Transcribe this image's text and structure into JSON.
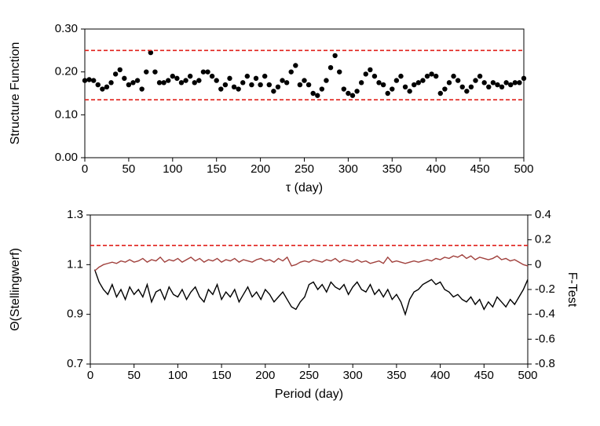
{
  "chart_data": [
    {
      "type": "scatter",
      "xlabel": "τ (day)",
      "ylabel": "Structure Function",
      "xlim": [
        0,
        500
      ],
      "xticks": [
        0,
        50,
        100,
        150,
        200,
        250,
        300,
        350,
        400,
        450,
        500
      ],
      "ylim": [
        0,
        0.3
      ],
      "yticks": [
        {
          "value": 0,
          "label": "0.00"
        },
        {
          "value": 0.1,
          "label": "0.10"
        },
        {
          "value": 0.2,
          "label": "0.20"
        },
        {
          "value": 0.3,
          "label": "0.30"
        }
      ],
      "hlines": [
        {
          "value": 0.25,
          "color": "#e0201b"
        },
        {
          "value": 0.135,
          "color": "#e0201b"
        }
      ],
      "x": [
        0,
        5,
        10,
        15,
        20,
        25,
        30,
        35,
        40,
        45,
        50,
        55,
        60,
        65,
        70,
        75,
        80,
        85,
        90,
        95,
        100,
        105,
        110,
        115,
        120,
        125,
        130,
        135,
        140,
        145,
        150,
        155,
        160,
        165,
        170,
        175,
        180,
        185,
        190,
        195,
        200,
        205,
        210,
        215,
        220,
        225,
        230,
        235,
        240,
        245,
        250,
        255,
        260,
        265,
        270,
        275,
        280,
        285,
        290,
        295,
        300,
        305,
        310,
        315,
        320,
        325,
        330,
        335,
        340,
        345,
        350,
        355,
        360,
        365,
        370,
        375,
        380,
        385,
        390,
        395,
        400,
        405,
        410,
        415,
        420,
        425,
        430,
        435,
        440,
        445,
        450,
        455,
        460,
        465,
        470,
        475,
        480,
        485,
        490,
        495,
        500
      ],
      "series": [
        {
          "color": "#000000",
          "values": [
            0.18,
            0.182,
            0.18,
            0.17,
            0.16,
            0.165,
            0.175,
            0.195,
            0.205,
            0.185,
            0.17,
            0.175,
            0.18,
            0.16,
            0.2,
            0.245,
            0.2,
            0.175,
            0.175,
            0.18,
            0.19,
            0.185,
            0.175,
            0.18,
            0.19,
            0.175,
            0.18,
            0.2,
            0.2,
            0.19,
            0.18,
            0.16,
            0.17,
            0.185,
            0.165,
            0.16,
            0.175,
            0.19,
            0.17,
            0.185,
            0.17,
            0.19,
            0.17,
            0.155,
            0.165,
            0.18,
            0.175,
            0.2,
            0.215,
            0.17,
            0.18,
            0.17,
            0.15,
            0.145,
            0.16,
            0.18,
            0.21,
            0.238,
            0.2,
            0.16,
            0.15,
            0.145,
            0.155,
            0.175,
            0.195,
            0.205,
            0.19,
            0.175,
            0.17,
            0.15,
            0.16,
            0.18,
            0.19,
            0.165,
            0.155,
            0.17,
            0.175,
            0.18,
            0.19,
            0.195,
            0.19,
            0.15,
            0.16,
            0.175,
            0.19,
            0.18,
            0.165,
            0.155,
            0.165,
            0.18,
            0.19,
            0.175,
            0.165,
            0.175,
            0.17,
            0.165,
            0.175,
            0.17,
            0.175,
            0.175,
            0.185
          ]
        }
      ]
    },
    {
      "type": "line",
      "xlabel": "Period (day)",
      "ylabel": "Θ(Stellingwerf)",
      "y2label": "F-Test",
      "xlim": [
        0,
        500
      ],
      "xticks": [
        0,
        50,
        100,
        150,
        200,
        250,
        300,
        350,
        400,
        450,
        500
      ],
      "ylim": [
        0.7,
        1.3
      ],
      "yticks": [
        0.7,
        0.9,
        1.1,
        1.3
      ],
      "y2lim": [
        -0.8,
        0.4
      ],
      "y2ticks": [
        -0.8,
        -0.6,
        -0.4,
        -0.2,
        0,
        0.2,
        0.4
      ],
      "hlines": [
        {
          "value": 0.155,
          "axis": "y2",
          "color": "#e0201b"
        }
      ],
      "x": [
        5,
        10,
        15,
        20,
        25,
        30,
        35,
        40,
        45,
        50,
        55,
        60,
        65,
        70,
        75,
        80,
        85,
        90,
        95,
        100,
        105,
        110,
        115,
        120,
        125,
        130,
        135,
        140,
        145,
        150,
        155,
        160,
        165,
        170,
        175,
        180,
        185,
        190,
        195,
        200,
        205,
        210,
        215,
        220,
        225,
        230,
        235,
        240,
        245,
        250,
        255,
        260,
        265,
        270,
        275,
        280,
        285,
        290,
        295,
        300,
        305,
        310,
        315,
        320,
        325,
        330,
        335,
        340,
        345,
        350,
        355,
        360,
        365,
        370,
        375,
        380,
        385,
        390,
        395,
        400,
        405,
        410,
        415,
        420,
        425,
        430,
        435,
        440,
        445,
        450,
        455,
        460,
        465,
        470,
        475,
        480,
        485,
        490,
        495,
        500
      ],
      "series": [
        {
          "color": "#000000",
          "values": [
            1.08,
            1.03,
            1.0,
            0.98,
            1.02,
            0.97,
            1.0,
            0.96,
            1.01,
            0.98,
            1.0,
            0.97,
            1.02,
            0.95,
            0.99,
            1.0,
            0.96,
            1.01,
            0.98,
            0.97,
            1.0,
            0.96,
            0.99,
            1.01,
            0.97,
            0.95,
            1.0,
            0.98,
            1.02,
            0.96,
            0.99,
            0.97,
            1.0,
            0.95,
            0.98,
            1.01,
            0.97,
            0.99,
            0.96,
            1.0,
            0.98,
            0.95,
            0.97,
            0.99,
            0.96,
            0.93,
            0.92,
            0.95,
            0.97,
            1.02,
            1.03,
            1.0,
            1.02,
            0.99,
            1.03,
            1.01,
            1.0,
            1.02,
            0.98,
            1.01,
            1.03,
            1.0,
            0.99,
            1.02,
            0.98,
            1.0,
            0.97,
            1.0,
            0.96,
            0.98,
            0.95,
            0.9,
            0.96,
            0.99,
            1.0,
            1.02,
            1.03,
            1.04,
            1.02,
            1.03,
            1.0,
            0.99,
            0.97,
            0.98,
            0.96,
            0.95,
            0.97,
            0.94,
            0.96,
            0.92,
            0.95,
            0.93,
            0.97,
            0.95,
            0.93,
            0.96,
            0.94,
            0.97,
            1.0,
            1.04
          ]
        },
        {
          "color": "#a0403c",
          "axis": "y2",
          "values": [
            -0.05,
            -0.02,
            0.0,
            0.01,
            0.02,
            0.01,
            0.03,
            0.02,
            0.04,
            0.02,
            0.03,
            0.05,
            0.02,
            0.04,
            0.03,
            0.06,
            0.02,
            0.04,
            0.03,
            0.05,
            0.02,
            0.04,
            0.06,
            0.03,
            0.05,
            0.02,
            0.04,
            0.03,
            0.05,
            0.02,
            0.04,
            0.03,
            0.05,
            0.02,
            0.04,
            0.03,
            0.02,
            0.04,
            0.05,
            0.03,
            0.04,
            0.02,
            0.05,
            0.03,
            0.06,
            -0.01,
            0.0,
            0.02,
            0.03,
            0.02,
            0.04,
            0.03,
            0.02,
            0.04,
            0.03,
            0.05,
            0.02,
            0.04,
            0.03,
            0.02,
            0.04,
            0.02,
            0.03,
            0.01,
            0.02,
            0.03,
            0.01,
            0.06,
            0.02,
            0.03,
            0.02,
            0.01,
            0.02,
            0.03,
            0.02,
            0.03,
            0.04,
            0.03,
            0.05,
            0.04,
            0.06,
            0.05,
            0.07,
            0.06,
            0.08,
            0.05,
            0.07,
            0.04,
            0.06,
            0.05,
            0.04,
            0.05,
            0.07,
            0.04,
            0.05,
            0.03,
            0.04,
            0.02,
            0.0,
            -0.01
          ]
        }
      ]
    }
  ]
}
